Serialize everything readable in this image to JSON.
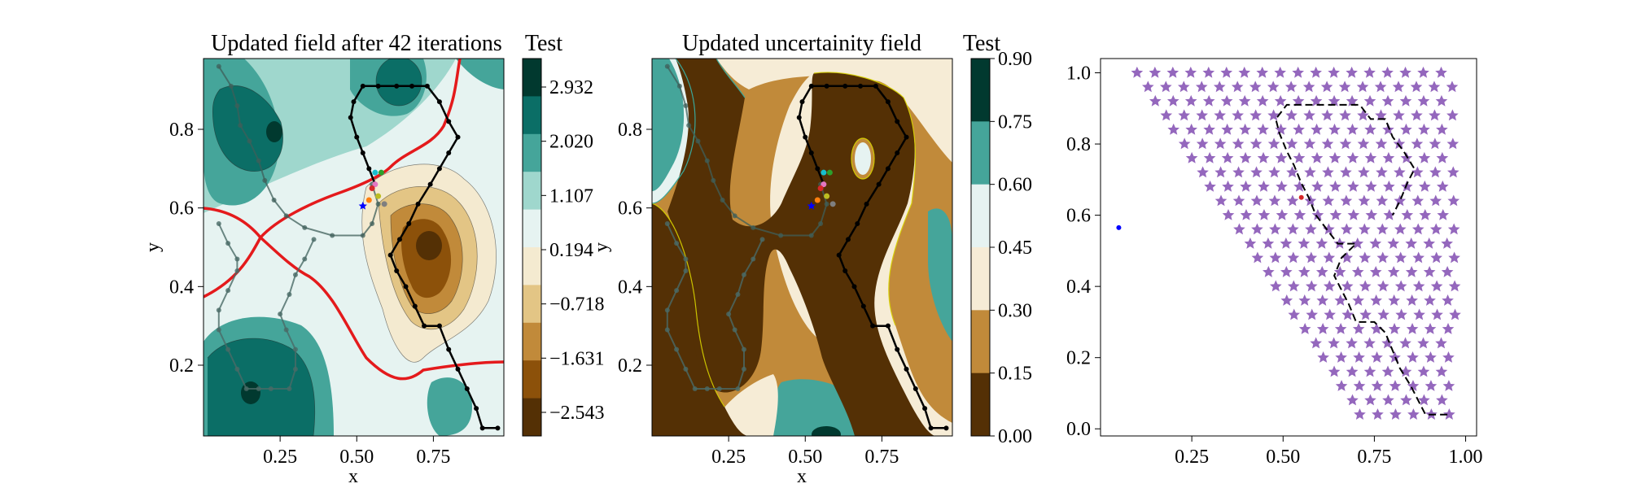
{
  "chart_data": [
    {
      "type": "contour",
      "title": "Updated field after 42 iterations",
      "xlabel": "x",
      "ylabel": "y",
      "xlim": [
        0.0,
        0.98
      ],
      "ylim": [
        0.02,
        0.98
      ],
      "xticks": [
        "0.25",
        "0.50",
        "0.75"
      ],
      "yticks": [
        "0.2",
        "0.4",
        "0.6",
        "0.8"
      ],
      "colormap": "BrBG",
      "colorbar": {
        "title": "Test",
        "ticks": [
          "2.932",
          "2.020",
          "1.107",
          "0.194",
          "−0.718",
          "−1.631",
          "−2.543"
        ],
        "colors": [
          "#01392f",
          "#0b6e66",
          "#45a59a",
          "#9fd7cd",
          "#e6f3f1",
          "#f4ead0",
          "#e3c585",
          "#c18a3a",
          "#8c510a",
          "#543005"
        ]
      },
      "visited_path": [
        [
          0.05,
          0.56
        ],
        [
          0.08,
          0.51
        ],
        [
          0.11,
          0.47
        ],
        [
          0.11,
          0.44
        ],
        [
          0.08,
          0.39
        ],
        [
          0.05,
          0.34
        ],
        [
          0.05,
          0.29
        ],
        [
          0.08,
          0.24
        ],
        [
          0.11,
          0.19
        ],
        [
          0.14,
          0.14
        ],
        [
          0.18,
          0.14
        ],
        [
          0.22,
          0.14
        ],
        [
          0.28,
          0.14
        ],
        [
          0.3,
          0.19
        ],
        [
          0.3,
          0.24
        ],
        [
          0.27,
          0.29
        ],
        [
          0.25,
          0.33
        ],
        [
          0.28,
          0.38
        ],
        [
          0.3,
          0.43
        ],
        [
          0.33,
          0.47
        ],
        [
          0.36,
          0.52
        ]
      ],
      "agent_path": [
        [
          0.05,
          0.96
        ],
        [
          0.09,
          0.91
        ],
        [
          0.11,
          0.86
        ],
        [
          0.12,
          0.81
        ],
        [
          0.15,
          0.77
        ],
        [
          0.18,
          0.72
        ],
        [
          0.2,
          0.67
        ],
        [
          0.23,
          0.62
        ],
        [
          0.27,
          0.58
        ],
        [
          0.33,
          0.55
        ],
        [
          0.42,
          0.53
        ],
        [
          0.52,
          0.53
        ],
        [
          0.55,
          0.56
        ],
        [
          0.57,
          0.61
        ],
        [
          0.55,
          0.66
        ]
      ],
      "planned_path": [
        [
          0.96,
          0.04
        ],
        [
          0.91,
          0.04
        ],
        [
          0.89,
          0.09
        ],
        [
          0.86,
          0.14
        ],
        [
          0.83,
          0.19
        ],
        [
          0.8,
          0.24
        ],
        [
          0.77,
          0.3
        ],
        [
          0.72,
          0.3
        ],
        [
          0.69,
          0.35
        ],
        [
          0.66,
          0.4
        ],
        [
          0.63,
          0.44
        ],
        [
          0.61,
          0.48
        ],
        [
          0.64,
          0.52
        ],
        [
          0.67,
          0.56
        ],
        [
          0.7,
          0.61
        ],
        [
          0.74,
          0.66
        ],
        [
          0.77,
          0.7
        ],
        [
          0.8,
          0.74
        ],
        [
          0.83,
          0.78
        ],
        [
          0.8,
          0.82
        ],
        [
          0.77,
          0.87
        ],
        [
          0.73,
          0.91
        ],
        [
          0.68,
          0.91
        ],
        [
          0.63,
          0.91
        ],
        [
          0.57,
          0.91
        ],
        [
          0.52,
          0.91
        ],
        [
          0.49,
          0.87
        ],
        [
          0.48,
          0.83
        ],
        [
          0.5,
          0.78
        ],
        [
          0.52,
          0.74
        ],
        [
          0.54,
          0.7
        ],
        [
          0.56,
          0.66
        ]
      ],
      "candidates": [
        [
          0.56,
          0.69,
          "#17becf"
        ],
        [
          0.58,
          0.69,
          "#2ca02c"
        ],
        [
          0.56,
          0.66,
          "#e377c2"
        ],
        [
          0.55,
          0.65,
          "#d62728"
        ],
        [
          0.57,
          0.63,
          "#bcbd22"
        ],
        [
          0.54,
          0.62,
          "#ff7f0e"
        ],
        [
          0.59,
          0.61,
          "#7f7f7f"
        ]
      ],
      "current": [
        0.52,
        0.605
      ]
    },
    {
      "type": "contour",
      "title": "Updated uncertainity field",
      "xlabel": "x",
      "ylabel": "y",
      "xlim": [
        0.0,
        0.98
      ],
      "ylim": [
        0.02,
        0.98
      ],
      "xticks": [
        "0.25",
        "0.50",
        "0.75"
      ],
      "yticks": [
        "0.2",
        "0.4",
        "0.6",
        "0.8"
      ],
      "colorbar": {
        "title": "Test",
        "ticks": [
          "0.90",
          "0.75",
          "0.60",
          "0.45",
          "0.30",
          "0.15",
          "0.00"
        ],
        "colors": [
          "#01392f",
          "#45a59a",
          "#e6f3f1",
          "#f6ecd6",
          "#c18a3a",
          "#543005"
        ]
      }
    },
    {
      "type": "scatter",
      "xlim": [
        0.0,
        1.03
      ],
      "ylim": [
        -0.02,
        1.04
      ],
      "xticks": [
        "0.25",
        "0.50",
        "0.75",
        "1.00"
      ],
      "yticks": [
        "0.0",
        "0.2",
        "0.4",
        "0.6",
        "0.8",
        "1.0"
      ],
      "grid_points": {
        "marker": "star",
        "color": "#9467bd",
        "row_ys": [
          1.0,
          0.96,
          0.92,
          0.88,
          0.84,
          0.8,
          0.76,
          0.72,
          0.68,
          0.64,
          0.6,
          0.56,
          0.52,
          0.48,
          0.44,
          0.4,
          0.36,
          0.32,
          0.28,
          0.24,
          0.2,
          0.16,
          0.12,
          0.08,
          0.04
        ],
        "row_x_start": [
          0.1,
          0.13,
          0.15,
          0.18,
          0.2,
          0.23,
          0.25,
          0.28,
          0.3,
          0.33,
          0.35,
          0.38,
          0.41,
          0.43,
          0.46,
          0.48,
          0.51,
          0.53,
          0.56,
          0.59,
          0.61,
          0.64,
          0.66,
          0.69,
          0.71
        ],
        "row_x_end": [
          0.96,
          0.98,
          0.96,
          0.98,
          0.96,
          0.98,
          0.96,
          0.98,
          0.96,
          0.98,
          0.96,
          0.98,
          0.96,
          0.98,
          0.96,
          0.98,
          0.96,
          0.98,
          0.96,
          0.98,
          0.96,
          0.98,
          0.96,
          0.98,
          0.96
        ],
        "spacing": 0.049
      },
      "path": [
        [
          0.95,
          0.04
        ],
        [
          0.89,
          0.04
        ],
        [
          0.87,
          0.08
        ],
        [
          0.85,
          0.12
        ],
        [
          0.82,
          0.17
        ],
        [
          0.8,
          0.22
        ],
        [
          0.78,
          0.27
        ],
        [
          0.75,
          0.3
        ],
        [
          0.7,
          0.3
        ],
        [
          0.68,
          0.35
        ],
        [
          0.66,
          0.39
        ],
        [
          0.64,
          0.43
        ],
        [
          0.66,
          0.48
        ],
        [
          0.7,
          0.52
        ],
        [
          0.65,
          0.52
        ],
        [
          0.62,
          0.56
        ],
        [
          0.59,
          0.6
        ],
        [
          0.57,
          0.65
        ],
        [
          0.55,
          0.69
        ],
        [
          0.53,
          0.74
        ],
        [
          0.51,
          0.78
        ],
        [
          0.49,
          0.83
        ],
        [
          0.48,
          0.87
        ],
        [
          0.51,
          0.91
        ],
        [
          0.56,
          0.91
        ],
        [
          0.61,
          0.91
        ],
        [
          0.66,
          0.91
        ],
        [
          0.71,
          0.91
        ],
        [
          0.74,
          0.87
        ],
        [
          0.78,
          0.87
        ],
        [
          0.8,
          0.82
        ],
        [
          0.83,
          0.78
        ],
        [
          0.86,
          0.73
        ],
        [
          0.84,
          0.69
        ],
        [
          0.82,
          0.64
        ],
        [
          0.8,
          0.6
        ]
      ],
      "current": [
        0.05,
        0.565
      ],
      "goal": [
        0.55,
        0.65
      ]
    }
  ]
}
